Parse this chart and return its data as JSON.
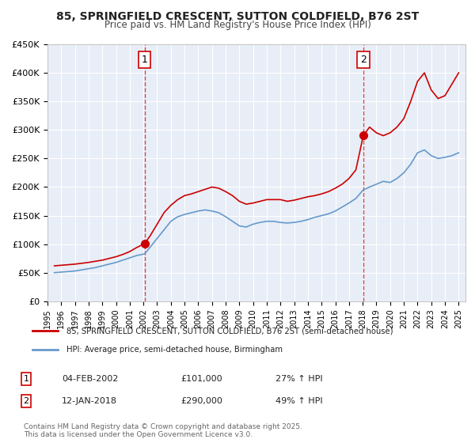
{
  "title": "85, SPRINGFIELD CRESCENT, SUTTON COLDFIELD, B76 2ST",
  "subtitle": "Price paid vs. HM Land Registry's House Price Index (HPI)",
  "background_color": "#ffffff",
  "plot_bg_color": "#e8eef7",
  "grid_color": "#ffffff",
  "ylim": [
    0,
    450000
  ],
  "yticks": [
    0,
    50000,
    100000,
    150000,
    200000,
    250000,
    300000,
    350000,
    400000,
    450000
  ],
  "xlim_start": 1995.0,
  "xlim_end": 2025.5,
  "xticks": [
    1995,
    1996,
    1997,
    1998,
    1999,
    2000,
    2001,
    2002,
    2003,
    2004,
    2005,
    2006,
    2007,
    2008,
    2009,
    2010,
    2011,
    2012,
    2013,
    2014,
    2015,
    2016,
    2017,
    2018,
    2019,
    2020,
    2021,
    2022,
    2023,
    2024,
    2025
  ],
  "sale1_x": 2002.09,
  "sale1_y": 101000,
  "sale1_label": "1",
  "sale1_date": "04-FEB-2002",
  "sale1_price": "£101,000",
  "sale1_hpi": "27% ↑ HPI",
  "sale2_x": 2018.04,
  "sale2_y": 290000,
  "sale2_label": "2",
  "sale2_date": "12-JAN-2018",
  "sale2_price": "£290,000",
  "sale2_hpi": "49% ↑ HPI",
  "property_color": "#cc0000",
  "hpi_color": "#6699cc",
  "legend_property": "85, SPRINGFIELD CRESCENT, SUTTON COLDFIELD, B76 2ST (semi-detached house)",
  "legend_hpi": "HPI: Average price, semi-detached house, Birmingham",
  "footer": "Contains HM Land Registry data © Crown copyright and database right 2025.\nThis data is licensed under the Open Government Licence v3.0.",
  "property_hpi_data": {
    "years": [
      1995.5,
      1996.0,
      1996.5,
      1997.0,
      1997.5,
      1998.0,
      1998.5,
      1999.0,
      1999.5,
      2000.0,
      2000.5,
      2001.0,
      2001.5,
      2002.09,
      2002.5,
      2003.0,
      2003.5,
      2004.0,
      2004.5,
      2005.0,
      2005.5,
      2006.0,
      2006.5,
      2007.0,
      2007.5,
      2008.0,
      2008.5,
      2009.0,
      2009.5,
      2010.0,
      2010.5,
      2011.0,
      2011.5,
      2012.0,
      2012.5,
      2013.0,
      2013.5,
      2014.0,
      2014.5,
      2015.0,
      2015.5,
      2016.0,
      2016.5,
      2017.0,
      2017.5,
      2018.04,
      2018.5,
      2019.0,
      2019.5,
      2020.0,
      2020.5,
      2021.0,
      2021.5,
      2022.0,
      2022.5,
      2023.0,
      2023.5,
      2024.0,
      2024.5,
      2025.0
    ],
    "property_values": [
      62000,
      63000,
      64000,
      65000,
      66500,
      68000,
      70000,
      72000,
      75000,
      78000,
      82000,
      87000,
      94000,
      101000,
      115000,
      135000,
      155000,
      168000,
      178000,
      185000,
      188000,
      192000,
      196000,
      200000,
      198000,
      192000,
      185000,
      175000,
      170000,
      172000,
      175000,
      178000,
      178000,
      178000,
      175000,
      177000,
      180000,
      183000,
      185000,
      188000,
      192000,
      198000,
      205000,
      215000,
      230000,
      290000,
      305000,
      295000,
      290000,
      295000,
      305000,
      320000,
      350000,
      385000,
      400000,
      370000,
      355000,
      360000,
      380000,
      400000
    ],
    "hpi_values": [
      50000,
      51000,
      52000,
      53000,
      55000,
      57000,
      59000,
      62000,
      65000,
      68000,
      72000,
      76000,
      80000,
      83000,
      95000,
      110000,
      125000,
      140000,
      148000,
      152000,
      155000,
      158000,
      160000,
      158000,
      155000,
      148000,
      140000,
      132000,
      130000,
      135000,
      138000,
      140000,
      140000,
      138000,
      137000,
      138000,
      140000,
      143000,
      147000,
      150000,
      153000,
      158000,
      165000,
      172000,
      180000,
      195000,
      200000,
      205000,
      210000,
      208000,
      215000,
      225000,
      240000,
      260000,
      265000,
      255000,
      250000,
      252000,
      255000,
      260000
    ]
  }
}
